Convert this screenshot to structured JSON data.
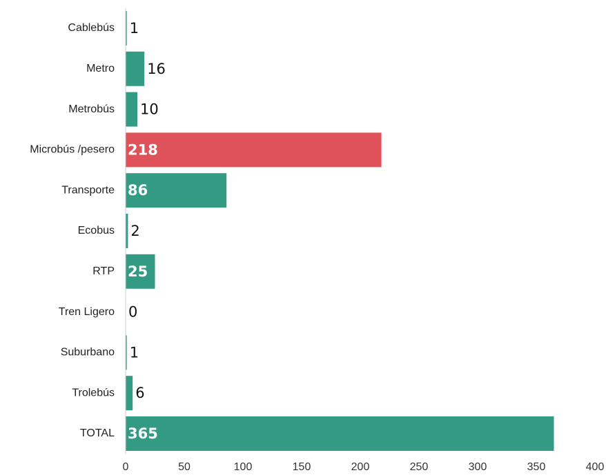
{
  "chart_data": {
    "type": "bar",
    "orientation": "horizontal",
    "categories": [
      "Cablebús",
      "Metro",
      "Metrobús",
      "Microbús /pesero",
      "Transporte",
      "Ecobus",
      "RTP",
      "Tren Ligero",
      "Suburbano",
      "Trolebús",
      "TOTAL"
    ],
    "values": [
      1,
      16,
      10,
      218,
      86,
      2,
      25,
      0,
      1,
      6,
      365
    ],
    "highlight": [
      false,
      false,
      false,
      true,
      false,
      false,
      false,
      false,
      false,
      false,
      false
    ],
    "colors": {
      "default": "#339b84",
      "highlight": "#e0525a",
      "axis": "#cccccc"
    },
    "xlim": [
      0,
      400
    ],
    "xticks": [
      0,
      50,
      100,
      150,
      200,
      250,
      300,
      350,
      400
    ],
    "title": "",
    "xlabel": "",
    "ylabel": "",
    "grid": false,
    "legend": "none"
  }
}
